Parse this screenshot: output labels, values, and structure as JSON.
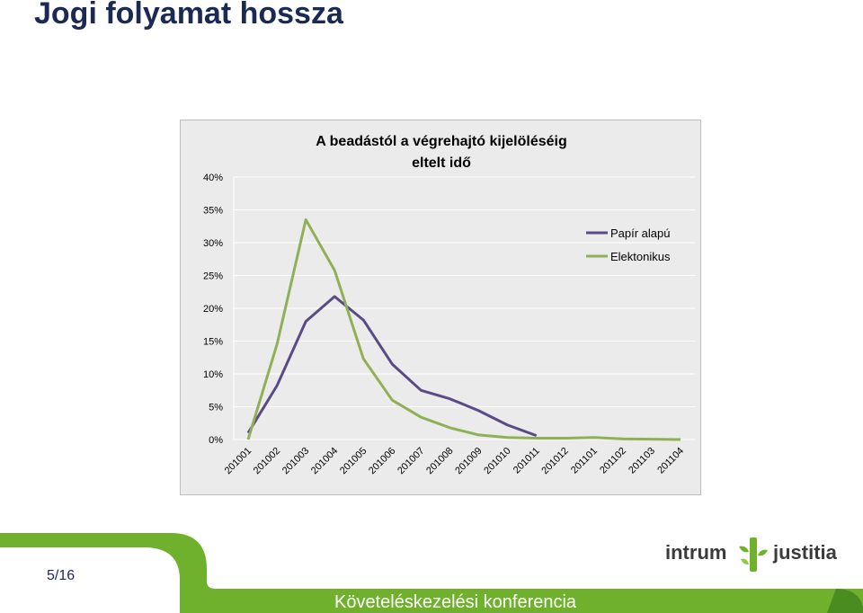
{
  "slide": {
    "title": "Jogi folyamat hossza",
    "page_number": "5/16",
    "footer_text": "Követeléskezelési konferencia",
    "logo_left": "intrum",
    "logo_right": "justitia"
  },
  "colors": {
    "title": "#1a2a55",
    "green_band": "#6fb12d",
    "papir": "#5a4a86",
    "elektronikus": "#8fb055"
  },
  "chart_data": {
    "type": "line",
    "title": "A beadástól a végrehajtó kijelöléséig eltelt idő",
    "title_lines": [
      "A beadástól a végrehajtó kijelöléséig",
      "eltelt idő"
    ],
    "categories": [
      "201001",
      "201002",
      "201003",
      "201004",
      "201005",
      "201006",
      "201007",
      "201008",
      "201009",
      "201010",
      "201011",
      "201012",
      "201101",
      "201102",
      "201103",
      "201104"
    ],
    "y_ticks": [
      "0%",
      "5%",
      "10%",
      "15%",
      "20%",
      "25%",
      "30%",
      "35%",
      "40%"
    ],
    "ylim": [
      0,
      40
    ],
    "grid": true,
    "legend_position": "top-right",
    "series": [
      {
        "name": "Papír alapú",
        "color": "#5a4a86",
        "values": [
          1,
          8.2,
          18,
          21.8,
          18.2,
          11.5,
          7.5,
          6.2,
          4.4,
          2.2,
          0.6,
          null,
          null,
          null,
          null,
          null
        ]
      },
      {
        "name": "Elektonikus",
        "color": "#8fb055",
        "values": [
          0,
          14.5,
          33.5,
          25.8,
          12.3,
          6,
          3.4,
          1.8,
          0.7,
          0.3,
          0.2,
          0.2,
          0.3,
          0.1,
          0.05,
          0
        ]
      }
    ]
  }
}
